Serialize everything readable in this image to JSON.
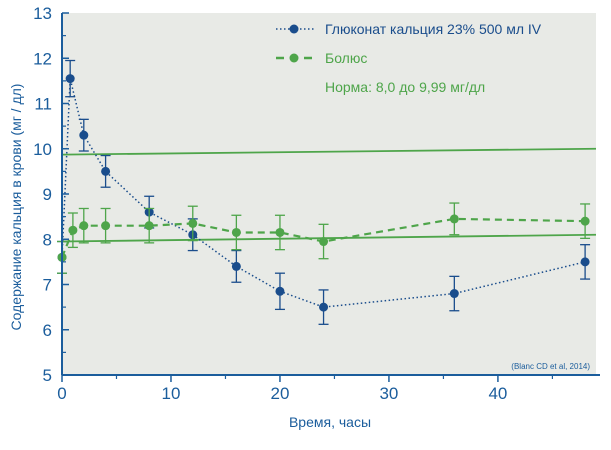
{
  "chart_data": {
    "type": "line",
    "title": "",
    "xlabel": "Время, часы",
    "ylabel": "Содержание кальция в крови (мг / дл)",
    "xlim": [
      0,
      49
    ],
    "ylim": [
      5,
      13
    ],
    "x_ticks": [
      0,
      10,
      20,
      30,
      40
    ],
    "y_ticks": [
      5,
      6,
      7,
      8,
      9,
      10,
      11,
      12,
      13
    ],
    "citation": "(Blanc CD et al, 2014)",
    "legend": {
      "series_labels": [
        "Глюконат кальция 23% 500 мл IV",
        "Болюс"
      ],
      "note": "Норма: 8,0 до 9,99 мг/дл",
      "placement": "top-right"
    },
    "colors": {
      "series1": "#1a4d8c",
      "series2": "#4ea54a",
      "reference": "#4ea54a",
      "axis": "#1b5d9c",
      "plot_bg": "#e8eae6"
    },
    "series": [
      {
        "name": "Глюконат кальция 23% 500 мл IV",
        "style": "dotted",
        "x": [
          0,
          0.75,
          2,
          4,
          8,
          12,
          16,
          20,
          24,
          36,
          48
        ],
        "y": [
          7.6,
          11.55,
          10.3,
          9.5,
          8.6,
          8.1,
          7.4,
          6.85,
          6.5,
          6.8,
          7.5
        ],
        "err": [
          0.35,
          0.4,
          0.35,
          0.35,
          0.35,
          0.35,
          0.35,
          0.4,
          0.38,
          0.38,
          0.38
        ]
      },
      {
        "name": "Болюс",
        "style": "dashed",
        "x": [
          0,
          1,
          2,
          4,
          8,
          12,
          16,
          20,
          24,
          36,
          48
        ],
        "y": [
          7.6,
          8.2,
          8.3,
          8.3,
          8.3,
          8.35,
          8.15,
          8.15,
          7.95,
          8.45,
          8.4
        ],
        "err": [
          0.35,
          0.38,
          0.38,
          0.38,
          0.38,
          0.38,
          0.38,
          0.38,
          0.38,
          0.35,
          0.38
        ]
      }
    ],
    "reference_lines": [
      {
        "name": "upper-normal",
        "x": [
          0,
          49
        ],
        "y": [
          9.87,
          10.0
        ]
      },
      {
        "name": "lower-normal",
        "x": [
          0,
          49
        ],
        "y": [
          7.95,
          8.1
        ]
      }
    ]
  }
}
